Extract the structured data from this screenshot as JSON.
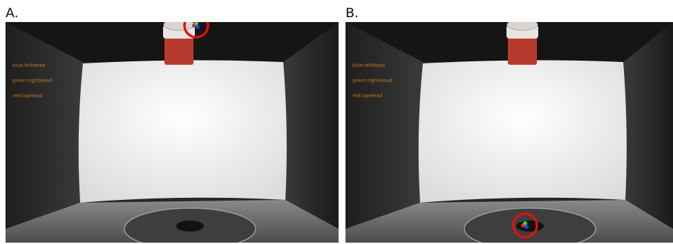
{
  "panels": [
    {
      "label": "A.",
      "legend": [
        "blue:leftHead",
        "green:rightHead",
        "red:topHead"
      ]
    },
    {
      "label": "B.",
      "legend": [
        "blue:leftHead",
        "green:rightHead",
        "red:topHead"
      ]
    }
  ]
}
